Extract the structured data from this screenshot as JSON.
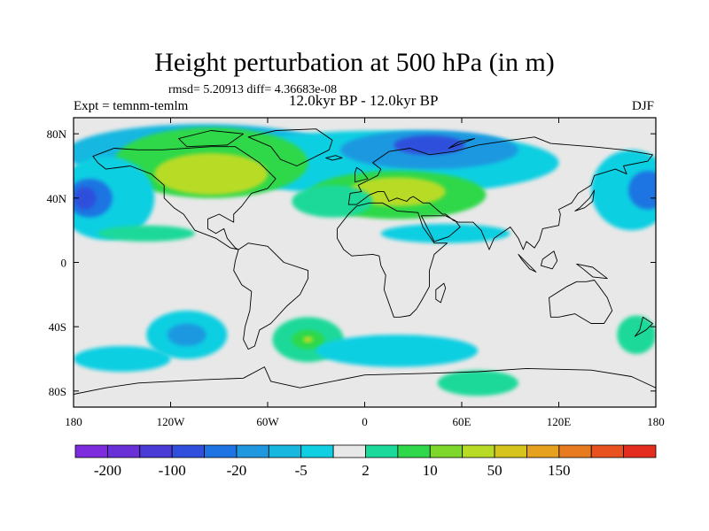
{
  "header": {
    "title": "Height perturbation at 500 hPa (in m)",
    "stats": "rmsd= 5.20913  diff= 4.36683e-08",
    "experiment": "Expt = temnm-temlm",
    "period": "12.0kyr BP - 12.0kyr BP",
    "season": "DJF"
  },
  "map": {
    "projection": "cylindrical equidistant",
    "lon_range": [
      -180,
      180
    ],
    "lat_range": [
      -90,
      90
    ],
    "background_color": "#e8e8e8",
    "coastline_color": "#000000",
    "lon_ticks": [
      {
        "value": -180,
        "label": "180"
      },
      {
        "value": -120,
        "label": "120W"
      },
      {
        "value": -60,
        "label": "60W"
      },
      {
        "value": 0,
        "label": "0"
      },
      {
        "value": 60,
        "label": "60E"
      },
      {
        "value": 120,
        "label": "120E"
      },
      {
        "value": 180,
        "label": "180"
      }
    ],
    "lat_ticks": [
      {
        "value": 80,
        "label": "80N"
      },
      {
        "value": 40,
        "label": "40N"
      },
      {
        "value": 0,
        "label": "0"
      },
      {
        "value": -40,
        "label": "40S"
      },
      {
        "value": -80,
        "label": "80S"
      }
    ]
  },
  "colorbar": {
    "colors": [
      "#7d2bdc",
      "#6a30d8",
      "#4a3ad6",
      "#2f4fdc",
      "#1e74e2",
      "#1f98e0",
      "#18b7e0",
      "#10cfe2",
      "#e8e8e8",
      "#1bd99a",
      "#2ed84a",
      "#7ed82c",
      "#b8dc26",
      "#d6c41c",
      "#e6a11e",
      "#e87a20",
      "#e8521f",
      "#e42d1e"
    ],
    "labels": [
      {
        "boundary": 1,
        "text": "-200"
      },
      {
        "boundary": 3,
        "text": "-100"
      },
      {
        "boundary": 5,
        "text": "-20"
      },
      {
        "boundary": 7,
        "text": "-5"
      },
      {
        "boundary": 9,
        "text": "2"
      },
      {
        "boundary": 11,
        "text": "10"
      },
      {
        "boundary": 13,
        "text": "50"
      },
      {
        "boundary": 15,
        "text": "150"
      }
    ]
  },
  "fields": [
    {
      "name": "arctic-north-pacific-cyan",
      "color": "#18b7e0",
      "lon": -100,
      "lat": 68,
      "rx": 85,
      "ry": 18
    },
    {
      "name": "arctic-north-pacific-light",
      "color": "#10cfe2",
      "lon": 10,
      "lat": 62,
      "rx": 110,
      "ry": 20
    },
    {
      "name": "north-america-green",
      "color": "#2ed84a",
      "lon": -95,
      "lat": 62,
      "rx": 60,
      "ry": 22
    },
    {
      "name": "north-america-lime",
      "color": "#b8dc26",
      "lon": -95,
      "lat": 55,
      "rx": 35,
      "ry": 13
    },
    {
      "name": "north-pacific-light",
      "color": "#10cfe2",
      "lon": -160,
      "lat": 40,
      "rx": 30,
      "ry": 26
    },
    {
      "name": "north-pacific-low",
      "color": "#1e74e2",
      "lon": -170,
      "lat": 40,
      "rx": 14,
      "ry": 12
    },
    {
      "name": "north-pacific-core",
      "color": "#2f4fdc",
      "lon": -173,
      "lat": 40,
      "rx": 7,
      "ry": 7
    },
    {
      "name": "eurasia-north-low",
      "color": "#1f98e0",
      "lon": 40,
      "lat": 70,
      "rx": 55,
      "ry": 12
    },
    {
      "name": "eurasia-north-core",
      "color": "#2f4fdc",
      "lon": 40,
      "lat": 73,
      "rx": 22,
      "ry": 6
    },
    {
      "name": "europe-green",
      "color": "#2ed84a",
      "lon": 20,
      "lat": 42,
      "rx": 55,
      "ry": 15
    },
    {
      "name": "europe-lime",
      "color": "#b8dc26",
      "lon": 20,
      "lat": 44,
      "rx": 30,
      "ry": 9
    },
    {
      "name": "atlantic-subtropic",
      "color": "#1bd99a",
      "lon": -20,
      "lat": 38,
      "rx": 25,
      "ry": 10
    },
    {
      "name": "north-africa-light",
      "color": "#10cfe2",
      "lon": 50,
      "lat": 18,
      "rx": 40,
      "ry": 6
    },
    {
      "name": "east-pacific-light",
      "color": "#10cfe2",
      "lon": 165,
      "lat": 45,
      "rx": 25,
      "ry": 25
    },
    {
      "name": "east-pacific-low",
      "color": "#1e74e2",
      "lon": 175,
      "lat": 45,
      "rx": 12,
      "ry": 12
    },
    {
      "name": "north-africa-green",
      "color": "#1bd99a",
      "lon": -135,
      "lat": 18,
      "rx": 30,
      "ry": 5
    },
    {
      "name": "south-pacific-light",
      "color": "#10cfe2",
      "lon": -110,
      "lat": -45,
      "rx": 25,
      "ry": 15
    },
    {
      "name": "south-pacific-low",
      "color": "#1f98e0",
      "lon": -110,
      "lat": -45,
      "rx": 12,
      "ry": 7
    },
    {
      "name": "south-atlantic-green",
      "color": "#1bd99a",
      "lon": -35,
      "lat": -48,
      "rx": 22,
      "ry": 14
    },
    {
      "name": "south-atlantic-core",
      "color": "#2ed84a",
      "lon": -35,
      "lat": -48,
      "rx": 10,
      "ry": 6
    },
    {
      "name": "south-atlantic-lime",
      "color": "#b8dc26",
      "lon": -35,
      "lat": -48,
      "rx": 3,
      "ry": 2
    },
    {
      "name": "southern-ocean-light",
      "color": "#10cfe2",
      "lon": 20,
      "lat": -55,
      "rx": 50,
      "ry": 10
    },
    {
      "name": "antarctic-green",
      "color": "#1bd99a",
      "lon": 70,
      "lat": -75,
      "rx": 25,
      "ry": 8
    },
    {
      "name": "south-pacific-west",
      "color": "#10cfe2",
      "lon": -150,
      "lat": -60,
      "rx": 30,
      "ry": 8
    },
    {
      "name": "southeast-pacific-green",
      "color": "#1bd99a",
      "lon": 168,
      "lat": -45,
      "rx": 12,
      "ry": 12
    }
  ],
  "land": [
    {
      "name": "north-america",
      "points": [
        [
          -168,
          66
        ],
        [
          -155,
          71
        ],
        [
          -140,
          70
        ],
        [
          -125,
          70
        ],
        [
          -95,
          72
        ],
        [
          -80,
          72
        ],
        [
          -65,
          62
        ],
        [
          -55,
          52
        ],
        [
          -60,
          46
        ],
        [
          -70,
          43
        ],
        [
          -76,
          35
        ],
        [
          -81,
          30
        ],
        [
          -81,
          25
        ],
        [
          -90,
          30
        ],
        [
          -97,
          27
        ],
        [
          -97,
          21
        ],
        [
          -92,
          18
        ],
        [
          -87,
          21
        ],
        [
          -85,
          15
        ],
        [
          -80,
          9
        ],
        [
          -78,
          8
        ],
        [
          -83,
          9
        ],
        [
          -92,
          15
        ],
        [
          -105,
          20
        ],
        [
          -112,
          30
        ],
        [
          -118,
          34
        ],
        [
          -124,
          40
        ],
        [
          -124,
          48
        ],
        [
          -132,
          55
        ],
        [
          -145,
          60
        ],
        [
          -160,
          58
        ],
        [
          -165,
          62
        ]
      ]
    },
    {
      "name": "greenland",
      "points": [
        [
          -72,
          78
        ],
        [
          -55,
          82
        ],
        [
          -30,
          83
        ],
        [
          -20,
          76
        ],
        [
          -22,
          70
        ],
        [
          -42,
          60
        ],
        [
          -52,
          64
        ],
        [
          -58,
          72
        ]
      ]
    },
    {
      "name": "south-america",
      "points": [
        [
          -78,
          8
        ],
        [
          -72,
          12
        ],
        [
          -60,
          10
        ],
        [
          -50,
          0
        ],
        [
          -35,
          -5
        ],
        [
          -35,
          -10
        ],
        [
          -40,
          -20
        ],
        [
          -48,
          -27
        ],
        [
          -58,
          -38
        ],
        [
          -65,
          -42
        ],
        [
          -68,
          -52
        ],
        [
          -72,
          -54
        ],
        [
          -75,
          -48
        ],
        [
          -74,
          -40
        ],
        [
          -71,
          -30
        ],
        [
          -70,
          -18
        ],
        [
          -76,
          -14
        ],
        [
          -81,
          -5
        ],
        [
          -80,
          1
        ]
      ]
    },
    {
      "name": "eurasia",
      "points": [
        [
          -10,
          36
        ],
        [
          -9,
          43
        ],
        [
          -2,
          44
        ],
        [
          -4,
          48
        ],
        [
          2,
          51
        ],
        [
          8,
          54
        ],
        [
          10,
          58
        ],
        [
          5,
          62
        ],
        [
          15,
          69
        ],
        [
          28,
          71
        ],
        [
          40,
          67
        ],
        [
          55,
          69
        ],
        [
          70,
          73
        ],
        [
          90,
          76
        ],
        [
          105,
          78
        ],
        [
          115,
          74
        ],
        [
          140,
          72
        ],
        [
          160,
          70
        ],
        [
          178,
          67
        ],
        [
          175,
          63
        ],
        [
          160,
          60
        ],
        [
          162,
          55
        ],
        [
          155,
          58
        ],
        [
          142,
          54
        ],
        [
          140,
          48
        ],
        [
          132,
          43
        ],
        [
          128,
          37
        ],
        [
          120,
          33
        ],
        [
          121,
          30
        ],
        [
          120,
          23
        ],
        [
          110,
          21
        ],
        [
          108,
          14
        ],
        [
          105,
          9
        ],
        [
          100,
          13
        ],
        [
          98,
          8
        ],
        [
          95,
          15
        ],
        [
          90,
          22
        ],
        [
          80,
          15
        ],
        [
          77,
          8
        ],
        [
          72,
          20
        ],
        [
          67,
          25
        ],
        [
          58,
          25
        ],
        [
          55,
          26
        ],
        [
          50,
          30
        ],
        [
          48,
          30
        ],
        [
          40,
          37
        ],
        [
          36,
          37
        ],
        [
          30,
          41
        ],
        [
          28,
          40
        ],
        [
          26,
          38
        ],
        [
          20,
          40
        ],
        [
          15,
          38
        ],
        [
          12,
          44
        ],
        [
          8,
          44
        ],
        [
          3,
          42
        ],
        [
          -5,
          36
        ]
      ]
    },
    {
      "name": "africa",
      "points": [
        [
          -17,
          21
        ],
        [
          -17,
          15
        ],
        [
          -13,
          8
        ],
        [
          -8,
          4
        ],
        [
          5,
          5
        ],
        [
          9,
          4
        ],
        [
          10,
          -2
        ],
        [
          13,
          -8
        ],
        [
          12,
          -17
        ],
        [
          18,
          -34
        ],
        [
          22,
          -34
        ],
        [
          28,
          -33
        ],
        [
          32,
          -29
        ],
        [
          35,
          -24
        ],
        [
          40,
          -15
        ],
        [
          40,
          -5
        ],
        [
          43,
          5
        ],
        [
          51,
          12
        ],
        [
          43,
          12
        ],
        [
          36,
          22
        ],
        [
          33,
          31
        ],
        [
          20,
          32
        ],
        [
          11,
          37
        ],
        [
          3,
          37
        ],
        [
          -5,
          35
        ],
        [
          -10,
          30
        ]
      ]
    },
    {
      "name": "arabia",
      "points": [
        [
          35,
          29
        ],
        [
          43,
          13
        ],
        [
          52,
          16
        ],
        [
          59,
          22
        ],
        [
          56,
          26
        ],
        [
          50,
          29
        ]
      ]
    },
    {
      "name": "australia",
      "points": [
        [
          114,
          -22
        ],
        [
          115,
          -34
        ],
        [
          120,
          -34
        ],
        [
          130,
          -32
        ],
        [
          135,
          -35
        ],
        [
          140,
          -38
        ],
        [
          148,
          -38
        ],
        [
          153,
          -30
        ],
        [
          150,
          -22
        ],
        [
          145,
          -15
        ],
        [
          142,
          -11
        ],
        [
          137,
          -12
        ],
        [
          131,
          -12
        ],
        [
          125,
          -15
        ]
      ]
    },
    {
      "name": "antarctica",
      "points": [
        [
          -180,
          -82
        ],
        [
          -160,
          -78
        ],
        [
          -140,
          -75
        ],
        [
          -100,
          -73
        ],
        [
          -75,
          -72
        ],
        [
          -62,
          -65
        ],
        [
          -58,
          -74
        ],
        [
          -40,
          -78
        ],
        [
          0,
          -70
        ],
        [
          40,
          -69
        ],
        [
          70,
          -68
        ],
        [
          100,
          -66
        ],
        [
          140,
          -67
        ],
        [
          165,
          -71
        ],
        [
          180,
          -78
        ],
        [
          180,
          -90
        ],
        [
          -180,
          -90
        ]
      ]
    },
    {
      "name": "madagascar",
      "points": [
        [
          44,
          -17
        ],
        [
          49,
          -13
        ],
        [
          50,
          -16
        ],
        [
          47,
          -25
        ],
        [
          44,
          -23
        ]
      ]
    },
    {
      "name": "british-isles",
      "points": [
        [
          -6,
          50
        ],
        [
          2,
          52
        ],
        [
          -2,
          57
        ],
        [
          -5,
          59
        ],
        [
          -6,
          56
        ]
      ]
    },
    {
      "name": "japan",
      "points": [
        [
          130,
          32
        ],
        [
          136,
          34
        ],
        [
          141,
          38
        ],
        [
          142,
          45
        ],
        [
          139,
          40
        ],
        [
          133,
          34
        ]
      ]
    },
    {
      "name": "new-zealand",
      "points": [
        [
          172,
          -34
        ],
        [
          178,
          -38
        ],
        [
          174,
          -42
        ],
        [
          167,
          -46
        ],
        [
          170,
          -42
        ]
      ]
    },
    {
      "name": "borneo",
      "points": [
        [
          109,
          -2
        ],
        [
          110,
          2
        ],
        [
          117,
          7
        ],
        [
          119,
          1
        ],
        [
          116,
          -4
        ]
      ]
    },
    {
      "name": "sumatra",
      "points": [
        [
          95,
          5
        ],
        [
          106,
          -6
        ],
        [
          102,
          -4
        ],
        [
          97,
          2
        ]
      ]
    },
    {
      "name": "new-guinea",
      "points": [
        [
          131,
          -1
        ],
        [
          141,
          -3
        ],
        [
          150,
          -10
        ],
        [
          141,
          -9
        ],
        [
          135,
          -4
        ]
      ]
    },
    {
      "name": "iceland",
      "points": [
        [
          -24,
          65
        ],
        [
          -18,
          66.5
        ],
        [
          -14,
          65
        ],
        [
          -20,
          63.5
        ]
      ]
    },
    {
      "name": "svalbard-novaya",
      "points": [
        [
          52,
          71
        ],
        [
          58,
          75
        ],
        [
          68,
          77
        ],
        [
          60,
          74
        ]
      ]
    },
    {
      "name": "canada-islands",
      "points": [
        [
          -110,
          72
        ],
        [
          -85,
          73
        ],
        [
          -75,
          80
        ],
        [
          -95,
          82
        ],
        [
          -115,
          77
        ]
      ]
    }
  ]
}
